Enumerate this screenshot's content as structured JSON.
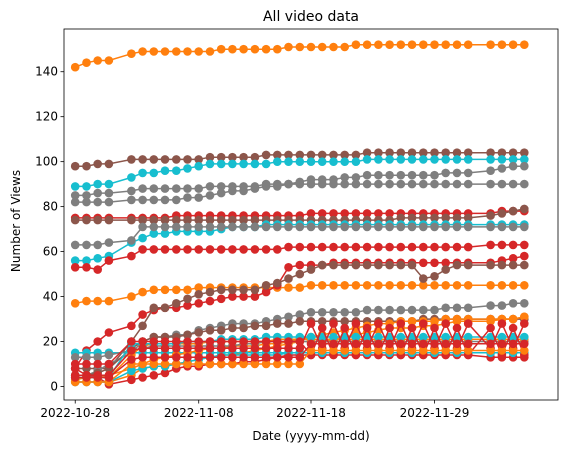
{
  "chart_data": {
    "type": "line",
    "title": "All video data",
    "xlabel": "Date (yyyy-mm-dd)",
    "ylabel": "Number of Views",
    "x_ticks": [
      "2022-10-28",
      "2022-11-08",
      "2022-11-18",
      "2022-11-29"
    ],
    "y_ticks": [
      0,
      20,
      40,
      60,
      80,
      100,
      120,
      140
    ],
    "xlim": [
      "2022-10-27",
      "2022-12-10"
    ],
    "ylim": [
      -6,
      159
    ],
    "grid": false,
    "legend": "none",
    "markers": "circle",
    "x_dates": [
      "2022-10-28",
      "2022-10-29",
      "2022-10-30",
      "2022-10-31",
      "2022-11-02",
      "2022-11-03",
      "2022-11-04",
      "2022-11-05",
      "2022-11-06",
      "2022-11-07",
      "2022-11-08",
      "2022-11-09",
      "2022-11-10",
      "2022-11-11",
      "2022-11-12",
      "2022-11-13",
      "2022-11-14",
      "2022-11-15",
      "2022-11-16",
      "2022-11-17",
      "2022-11-18",
      "2022-11-19",
      "2022-11-20",
      "2022-11-21",
      "2022-11-22",
      "2022-11-23",
      "2022-11-24",
      "2022-11-25",
      "2022-11-26",
      "2022-11-27",
      "2022-11-28",
      "2022-11-29",
      "2022-11-30",
      "2022-12-01",
      "2022-12-02",
      "2022-12-04",
      "2022-12-05",
      "2022-12-06",
      "2022-12-07"
    ],
    "series": [
      {
        "color": "#ff7f0e",
        "values": [
          142,
          144,
          145,
          145,
          148,
          149,
          149,
          149,
          149,
          149,
          149,
          149,
          150,
          150,
          150,
          150,
          150,
          150,
          151,
          151,
          151,
          151,
          151,
          151,
          152,
          152,
          152,
          152,
          152,
          152,
          152,
          152,
          152,
          152,
          152,
          152,
          152,
          152,
          152
        ]
      },
      {
        "color": "#8c564b",
        "values": [
          98,
          98,
          99,
          99,
          101,
          101,
          101,
          101,
          101,
          101,
          101,
          102,
          102,
          102,
          102,
          102,
          103,
          103,
          103,
          103,
          103,
          103,
          103,
          103,
          103,
          104,
          104,
          104,
          104,
          104,
          104,
          104,
          104,
          104,
          104,
          104,
          104,
          104,
          104
        ]
      },
      {
        "color": "#17becf",
        "values": [
          89,
          89,
          90,
          90,
          93,
          95,
          95,
          96,
          96,
          97,
          98,
          99,
          99,
          99,
          99,
          99,
          99,
          100,
          100,
          100,
          100,
          100,
          100,
          100,
          100,
          101,
          101,
          101,
          101,
          101,
          101,
          101,
          101,
          101,
          101,
          101,
          101,
          101,
          101
        ]
      },
      {
        "color": "#7f7f7f",
        "values": [
          85,
          85,
          86,
          86,
          87,
          88,
          88,
          88,
          88,
          88,
          88,
          89,
          89,
          89,
          89,
          89,
          90,
          90,
          90,
          90,
          90,
          90,
          90,
          90,
          90,
          90,
          90,
          90,
          90,
          90,
          90,
          90,
          90,
          90,
          90,
          90,
          90,
          90,
          90
        ]
      },
      {
        "color": "#7f7f7f",
        "values": [
          82,
          82,
          82,
          82,
          83,
          83,
          83,
          83,
          83,
          84,
          84,
          85,
          86,
          87,
          87,
          88,
          89,
          89,
          90,
          91,
          92,
          92,
          92,
          93,
          93,
          94,
          94,
          94,
          94,
          94,
          94,
          94,
          95,
          95,
          95,
          96,
          97,
          98,
          98
        ]
      },
      {
        "color": "#d62728",
        "values": [
          75,
          75,
          75,
          75,
          75,
          75,
          75,
          75,
          76,
          76,
          76,
          76,
          76,
          76,
          76,
          76,
          76,
          76,
          76,
          76,
          77,
          77,
          77,
          77,
          77,
          77,
          77,
          77,
          77,
          77,
          77,
          77,
          77,
          77,
          77,
          77,
          78,
          78,
          78
        ]
      },
      {
        "color": "#8c564b",
        "values": [
          74,
          74,
          74,
          74,
          74,
          74,
          74,
          74,
          74,
          74,
          74,
          74,
          74,
          74,
          74,
          74,
          74,
          74,
          74,
          74,
          74,
          74,
          74,
          74,
          74,
          74,
          74,
          74,
          75,
          75,
          75,
          75,
          75,
          75,
          75,
          76,
          77,
          78,
          79
        ]
      },
      {
        "color": "#17becf",
        "values": [
          56,
          56,
          57,
          58,
          64,
          66,
          68,
          68,
          69,
          69,
          69,
          69,
          70,
          71,
          71,
          71,
          72,
          72,
          72,
          72,
          72,
          72,
          72,
          72,
          72,
          72,
          72,
          72,
          72,
          72,
          72,
          72,
          72,
          72,
          72,
          72,
          72,
          72,
          72
        ]
      },
      {
        "color": "#7f7f7f",
        "values": [
          63,
          63,
          63,
          64,
          65,
          71,
          71,
          71,
          71,
          71,
          71,
          71,
          71,
          71,
          71,
          71,
          71,
          71,
          71,
          71,
          71,
          71,
          71,
          71,
          71,
          71,
          71,
          71,
          71,
          71,
          71,
          71,
          71,
          71,
          71,
          71,
          71,
          71,
          71
        ]
      },
      {
        "color": "#d62728",
        "values": [
          53,
          53,
          52,
          56,
          58,
          61,
          61,
          61,
          61,
          61,
          61,
          61,
          61,
          61,
          61,
          61,
          61,
          61,
          62,
          62,
          62,
          62,
          62,
          62,
          62,
          62,
          62,
          62,
          62,
          62,
          62,
          62,
          62,
          62,
          62,
          63,
          63,
          63,
          63
        ]
      },
      {
        "color": "#ff7f0e",
        "values": [
          37,
          38,
          38,
          38,
          40,
          42,
          43,
          43,
          43,
          43,
          44,
          44,
          44,
          44,
          44,
          44,
          44,
          44,
          44,
          44,
          45,
          45,
          45,
          45,
          45,
          45,
          45,
          45,
          45,
          45,
          45,
          45,
          45,
          45,
          45,
          45,
          45,
          45,
          45
        ]
      },
      {
        "color": "#d62728",
        "values": [
          8,
          16,
          20,
          24,
          27,
          32,
          34,
          35,
          35,
          36,
          37,
          38,
          39,
          40,
          40,
          40,
          42,
          45,
          53,
          54,
          54,
          54,
          55,
          55,
          55,
          55,
          55,
          55,
          55,
          55,
          55,
          55,
          55,
          55,
          55,
          55,
          56,
          57,
          58
        ]
      },
      {
        "color": "#8c564b",
        "values": [
          8,
          8,
          8,
          8,
          20,
          27,
          35,
          35,
          37,
          39,
          41,
          42,
          43,
          43,
          43,
          43,
          45,
          46,
          48,
          50,
          52,
          54,
          54,
          54,
          54,
          54,
          54,
          54,
          54,
          54,
          48,
          49,
          52,
          54,
          54,
          54,
          54,
          54,
          54
        ]
      },
      {
        "color": "#7f7f7f",
        "values": [
          5,
          5,
          7,
          10,
          15,
          20,
          22,
          22,
          23,
          23,
          25,
          26,
          27,
          28,
          28,
          28,
          29,
          30,
          31,
          32,
          33,
          33,
          33,
          33,
          33,
          34,
          34,
          34,
          34,
          34,
          34,
          34,
          35,
          35,
          35,
          36,
          36,
          37,
          37
        ]
      },
      {
        "color": "#8c564b",
        "values": [
          5,
          5,
          6,
          8,
          17,
          20,
          22,
          22,
          22,
          23,
          24,
          25,
          25,
          26,
          26,
          27,
          27,
          28,
          28,
          29,
          29,
          29,
          29,
          29,
          29,
          29,
          29,
          29,
          29,
          29,
          30,
          30,
          30,
          30,
          30,
          30,
          30,
          30,
          30
        ]
      },
      {
        "color": "#ff7f0e",
        "values": [
          2,
          2,
          2,
          2,
          5,
          8,
          9,
          9,
          10,
          11,
          12,
          13,
          14,
          14,
          15,
          16,
          17,
          18,
          19,
          20,
          20,
          20,
          21,
          22,
          23,
          24,
          25,
          26,
          26,
          26,
          27,
          27,
          28,
          29,
          29,
          29,
          30,
          30,
          31
        ]
      },
      {
        "color": "#17becf",
        "values": [
          15,
          15,
          15,
          15,
          15,
          15,
          15,
          15,
          15,
          15,
          15,
          15,
          15,
          15,
          15,
          15,
          15,
          15,
          15,
          15,
          15,
          15,
          15,
          15,
          15,
          15,
          15,
          15,
          15,
          15,
          15,
          15,
          15,
          15,
          15,
          15,
          15,
          15,
          15
        ]
      },
      {
        "color": "#ff7f0e",
        "values": [
          3,
          4,
          4,
          5,
          8,
          10,
          12,
          13,
          14,
          15,
          16,
          17,
          17,
          18,
          18,
          18,
          19,
          19,
          20,
          21,
          22,
          23,
          24,
          25,
          26,
          27,
          28,
          28,
          29,
          29,
          29,
          29,
          30,
          30,
          30,
          30,
          30,
          30,
          31
        ]
      },
      {
        "color": "#d62728",
        "values": [
          8,
          5,
          4,
          1,
          3,
          4,
          5,
          6,
          8,
          9,
          9,
          10,
          10,
          10,
          11,
          11,
          12,
          13,
          14,
          14,
          14,
          14,
          14,
          14,
          14,
          14,
          14,
          14,
          14,
          14,
          14,
          14,
          14,
          14,
          14,
          13,
          13,
          13,
          13
        ]
      },
      {
        "color": "#17becf",
        "values": [
          2,
          2,
          2,
          2,
          7,
          8,
          9,
          9,
          10,
          11,
          12,
          13,
          14,
          14,
          14,
          14,
          14,
          14,
          15,
          15,
          15,
          15,
          15,
          15,
          15,
          15,
          15,
          15,
          15,
          15,
          15,
          15,
          15,
          15,
          15,
          15,
          15,
          15,
          15
        ]
      },
      {
        "color": "#7f7f7f",
        "values": [
          13,
          13,
          13,
          14,
          16,
          17,
          18,
          18,
          18,
          18,
          18,
          18,
          18,
          18,
          19,
          19,
          20,
          20,
          20,
          20,
          20,
          20,
          20,
          20,
          20,
          20,
          20,
          20,
          20,
          20,
          20,
          20,
          20,
          20,
          20,
          20,
          20,
          20,
          20
        ]
      },
      {
        "color": "#ff7f0e",
        "values": [
          4,
          4,
          4,
          4,
          14,
          18,
          19,
          19,
          19,
          19,
          19,
          20,
          20,
          20,
          20,
          20,
          20,
          21,
          21,
          21,
          21,
          21,
          21,
          21,
          21,
          21,
          21,
          21,
          21,
          21,
          21,
          21,
          21,
          21,
          21,
          21,
          21,
          21,
          21
        ]
      },
      {
        "color": "#17becf",
        "values": [
          4,
          4,
          4,
          4,
          19,
          19,
          19,
          19,
          19,
          20,
          20,
          20,
          21,
          21,
          21,
          21,
          22,
          22,
          22,
          22,
          22,
          22,
          22,
          22,
          22,
          22,
          22,
          22,
          22,
          22,
          22,
          22,
          22,
          22,
          22,
          22,
          22,
          22,
          22
        ]
      },
      {
        "color": "#d62728",
        "values": [
          5,
          5,
          5,
          5,
          16,
          17,
          17,
          17,
          17,
          17,
          17,
          17,
          17,
          17,
          17,
          17,
          17,
          17,
          17,
          17,
          28,
          17,
          28,
          17,
          28,
          17,
          28,
          17,
          28,
          17,
          28,
          17,
          28,
          17,
          28,
          17,
          28,
          17,
          28
        ]
      },
      {
        "color": "#d62728",
        "values": [
          10,
          10,
          10,
          10,
          20,
          20,
          20,
          20,
          20,
          20,
          20,
          20,
          20,
          20,
          20,
          20,
          20,
          20,
          20,
          20,
          14,
          26,
          14,
          26,
          14,
          26,
          14,
          26,
          14,
          26,
          14,
          26,
          14,
          26,
          14,
          26,
          14,
          26,
          14
        ]
      },
      {
        "color": "#ff7f0e",
        "values": [
          2,
          2,
          2,
          2,
          10,
          10,
          10,
          10,
          10,
          10,
          10,
          10,
          10,
          10,
          10,
          10,
          10,
          10,
          10,
          10,
          16,
          16,
          16,
          16,
          16,
          16,
          16,
          16,
          16,
          16,
          16,
          16,
          16,
          16,
          16,
          16,
          16,
          16,
          16
        ]
      },
      {
        "color": "#d62728",
        "values": [
          4,
          4,
          4,
          4,
          12,
          13,
          13,
          13,
          13,
          13,
          13,
          13,
          13,
          13,
          13,
          13,
          13,
          13,
          13,
          13,
          19,
          19,
          19,
          19,
          19,
          19,
          19,
          19,
          19,
          19,
          19,
          19,
          19,
          19,
          19,
          19,
          19,
          19,
          19
        ]
      }
    ]
  }
}
